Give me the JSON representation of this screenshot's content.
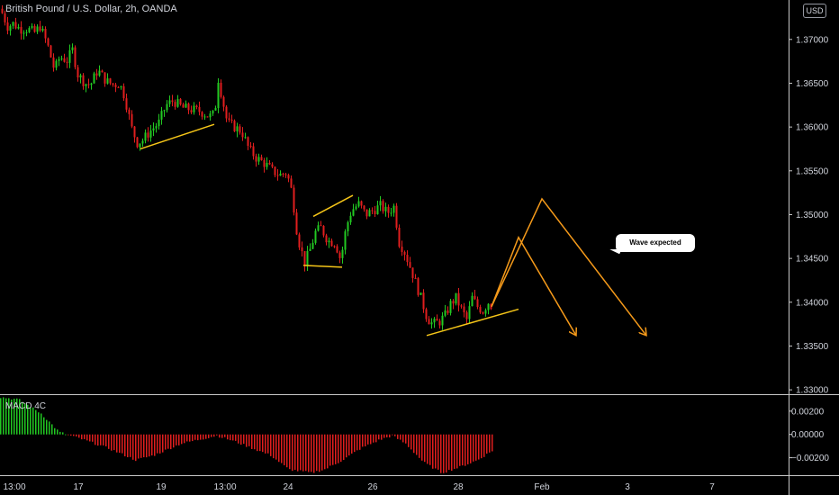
{
  "header": {
    "title": "British Pound / U.S. Dollar, 2h, OANDA",
    "currency": "USD"
  },
  "indicator": {
    "label": "MACD 4C"
  },
  "annotation": {
    "text": "Wave expected"
  },
  "colors": {
    "up": "#22c922",
    "down": "#e01e1e",
    "trend": "#f5c518",
    "projection": "#f59a1a",
    "grid": "#2a2e39",
    "axis_text": "#d1d4dc"
  },
  "chart_data": [
    {
      "type": "candlestick",
      "title": "British Pound / U.S. Dollar, 2h, OANDA",
      "xlabel": "",
      "ylabel": "",
      "x_ticks": [
        "13:00",
        "17",
        "19",
        "13:00",
        "24",
        "26",
        "28",
        "Feb",
        "3",
        "7"
      ],
      "y_ticks": [
        "1.37000",
        "1.36500",
        "1.36000",
        "1.35500",
        "1.35000",
        "1.34500",
        "1.34000",
        "1.33500",
        "1.33000"
      ],
      "ylim": [
        1.3295,
        1.3745
      ],
      "price_path": [
        [
          0,
          1.3735
        ],
        [
          4,
          1.3725
        ],
        [
          8,
          1.3715
        ],
        [
          14,
          1.3718
        ],
        [
          22,
          1.3712
        ],
        [
          30,
          1.3712
        ],
        [
          38,
          1.3708
        ],
        [
          44,
          1.3715
        ],
        [
          52,
          1.3695
        ],
        [
          60,
          1.3665
        ],
        [
          66,
          1.368
        ],
        [
          74,
          1.3676
        ],
        [
          80,
          1.3688
        ],
        [
          86,
          1.366
        ],
        [
          94,
          1.365
        ],
        [
          100,
          1.3648
        ],
        [
          108,
          1.3665
        ],
        [
          118,
          1.3652
        ],
        [
          126,
          1.3648
        ],
        [
          132,
          1.365
        ],
        [
          138,
          1.3635
        ],
        [
          146,
          1.3598
        ],
        [
          152,
          1.3582
        ],
        [
          158,
          1.3585
        ],
        [
          166,
          1.3595
        ],
        [
          176,
          1.3605
        ],
        [
          184,
          1.3625
        ],
        [
          192,
          1.363
        ],
        [
          202,
          1.3622
        ],
        [
          212,
          1.362
        ],
        [
          222,
          1.3618
        ],
        [
          232,
          1.3612
        ],
        [
          238,
          1.3615
        ],
        [
          242,
          1.3655
        ],
        [
          246,
          1.3635
        ],
        [
          252,
          1.3605
        ],
        [
          260,
          1.36
        ],
        [
          268,
          1.3595
        ],
        [
          276,
          1.3575
        ],
        [
          284,
          1.3565
        ],
        [
          294,
          1.3558
        ],
        [
          302,
          1.355
        ],
        [
          310,
          1.3545
        ],
        [
          318,
          1.3548
        ],
        [
          324,
          1.3525
        ],
        [
          330,
          1.3475
        ],
        [
          338,
          1.3445
        ],
        [
          344,
          1.346
        ],
        [
          350,
          1.348
        ],
        [
          356,
          1.3485
        ],
        [
          364,
          1.347
        ],
        [
          372,
          1.3468
        ],
        [
          378,
          1.3448
        ],
        [
          384,
          1.3485
        ],
        [
          390,
          1.3505
        ],
        [
          398,
          1.3512
        ],
        [
          406,
          1.35
        ],
        [
          414,
          1.3505
        ],
        [
          422,
          1.351
        ],
        [
          430,
          1.3502
        ],
        [
          438,
          1.351
        ],
        [
          442,
          1.347
        ],
        [
          448,
          1.346
        ],
        [
          456,
          1.3438
        ],
        [
          462,
          1.342
        ],
        [
          468,
          1.3402
        ],
        [
          474,
          1.3382
        ],
        [
          480,
          1.3375
        ],
        [
          488,
          1.3378
        ],
        [
          494,
          1.3385
        ],
        [
          500,
          1.3398
        ],
        [
          506,
          1.3405
        ],
        [
          512,
          1.3392
        ],
        [
          518,
          1.338
        ],
        [
          524,
          1.3405
        ],
        [
          530,
          1.3395
        ],
        [
          536,
          1.339
        ],
        [
          542,
          1.34
        ],
        [
          546,
          1.3395
        ]
      ],
      "trendlines": [
        [
          [
            156,
            1.3575
          ],
          [
            238,
            1.3603
          ]
        ],
        [
          [
            348,
            1.3498
          ],
          [
            392,
            1.3522
          ]
        ],
        [
          [
            337,
            1.3442
          ],
          [
            380,
            1.344
          ]
        ],
        [
          [
            474,
            1.3362
          ],
          [
            576,
            1.3392
          ]
        ]
      ],
      "projection_paths": [
        [
          [
            546,
            1.3395
          ],
          [
            576,
            1.3474
          ],
          [
            640,
            1.3362
          ]
        ],
        [
          [
            546,
            1.3395
          ],
          [
            602,
            1.3518
          ],
          [
            718,
            1.3362
          ]
        ]
      ]
    },
    {
      "type": "histogram",
      "title": "MACD 4C",
      "y_ticks": [
        "0.00200",
        "0.00000",
        "-0.00200"
      ],
      "ylim": [
        -0.0035,
        0.0033
      ],
      "x_range": [
        0,
        546
      ],
      "series_path": [
        [
          0,
          0.0032
        ],
        [
          20,
          0.003
        ],
        [
          45,
          0.0018
        ],
        [
          65,
          0.0002
        ],
        [
          90,
          -0.0004
        ],
        [
          120,
          -0.0012
        ],
        [
          150,
          -0.0022
        ],
        [
          170,
          -0.0018
        ],
        [
          200,
          -0.0008
        ],
        [
          240,
          -0.0001
        ],
        [
          260,
          -0.0006
        ],
        [
          280,
          -0.0012
        ],
        [
          300,
          -0.0018
        ],
        [
          320,
          -0.003
        ],
        [
          345,
          -0.0033
        ],
        [
          360,
          -0.003
        ],
        [
          380,
          -0.0022
        ],
        [
          400,
          -0.0012
        ],
        [
          420,
          -0.0005
        ],
        [
          435,
          -0.0001
        ],
        [
          450,
          -0.0008
        ],
        [
          470,
          -0.0024
        ],
        [
          490,
          -0.0033
        ],
        [
          510,
          -0.0028
        ],
        [
          530,
          -0.0022
        ],
        [
          546,
          -0.0014
        ]
      ]
    }
  ]
}
